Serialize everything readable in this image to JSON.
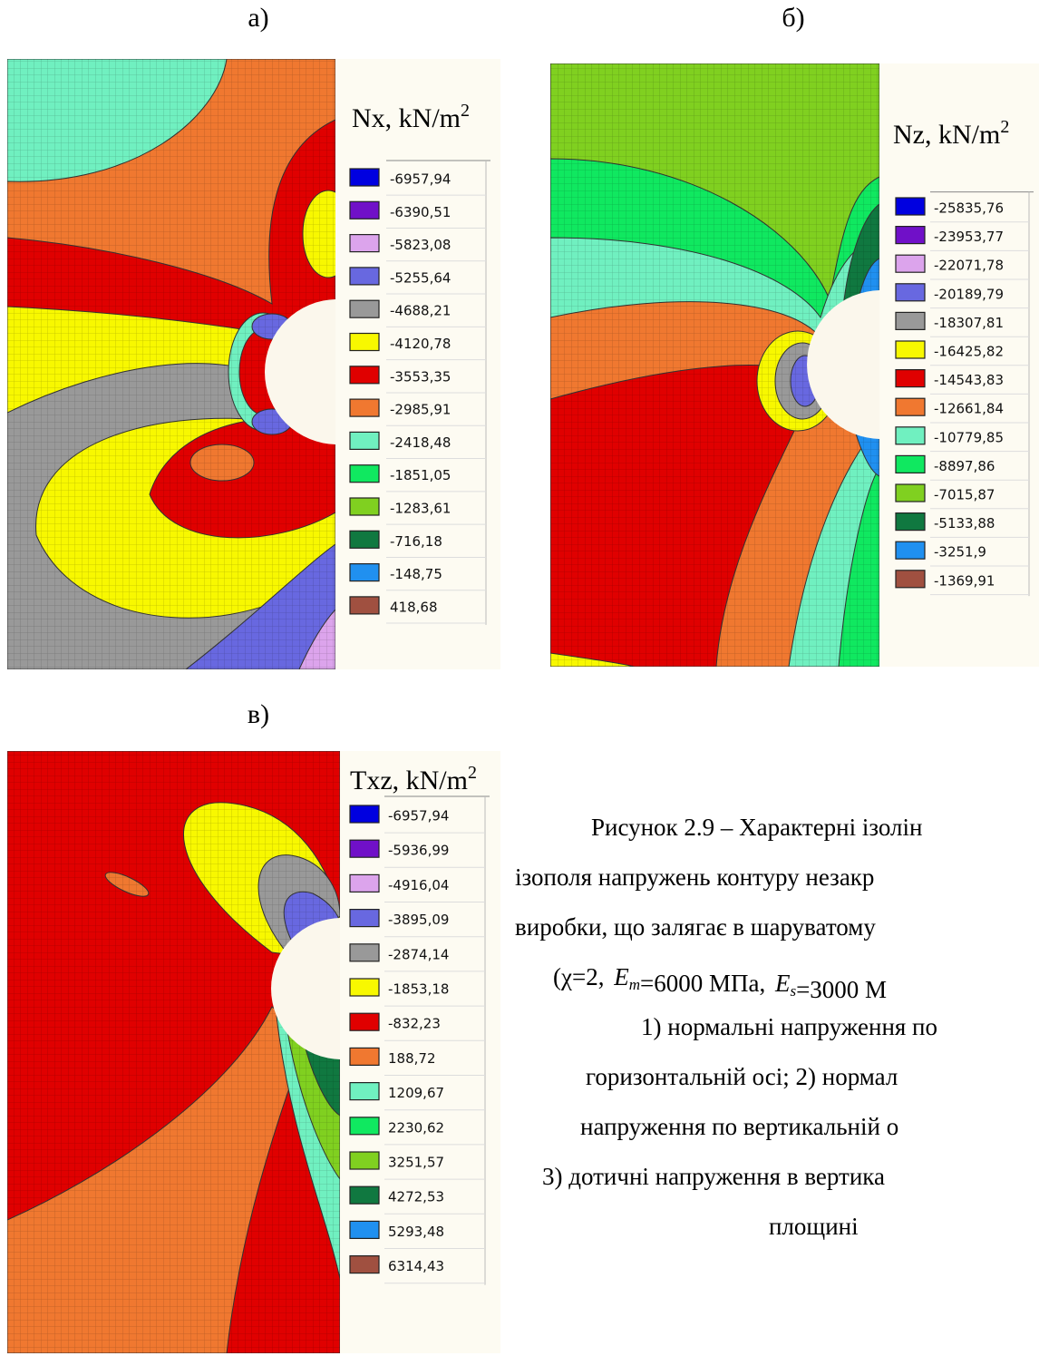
{
  "panels": [
    {
      "label": "а)",
      "title": "Nx, kN/m",
      "title_sup": "2",
      "legend": [
        {
          "color": "#0000e0",
          "label": "-6957,94"
        },
        {
          "color": "#7010c8",
          "label": "-6390,51"
        },
        {
          "color": "#dca4ec",
          "label": "-5823,08"
        },
        {
          "color": "#6868e0",
          "label": "-5255,64"
        },
        {
          "color": "#999999",
          "label": "-4688,21"
        },
        {
          "color": "#f8f800",
          "label": "-4120,78"
        },
        {
          "color": "#e00000",
          "label": "-3553,35"
        },
        {
          "color": "#f07830",
          "label": "-2985,91"
        },
        {
          "color": "#70f0c0",
          "label": "-2418,48"
        },
        {
          "color": "#10e860",
          "label": "-1851,05"
        },
        {
          "color": "#80d020",
          "label": "-1283,61"
        },
        {
          "color": "#107840",
          "label": "-716,18"
        },
        {
          "color": "#2090f0",
          "label": "-148,75"
        },
        {
          "color": "#a05040",
          "label": "418,68"
        }
      ]
    },
    {
      "label": "б)",
      "title": "Nz, kN/m",
      "title_sup": "2",
      "legend": [
        {
          "color": "#0000e0",
          "label": "-25835,76"
        },
        {
          "color": "#7010c8",
          "label": "-23953,77"
        },
        {
          "color": "#dca4ec",
          "label": "-22071,78"
        },
        {
          "color": "#6868e0",
          "label": "-20189,79"
        },
        {
          "color": "#999999",
          "label": "-18307,81"
        },
        {
          "color": "#f8f800",
          "label": "-16425,82"
        },
        {
          "color": "#e00000",
          "label": "-14543,83"
        },
        {
          "color": "#f07830",
          "label": "-12661,84"
        },
        {
          "color": "#70f0c0",
          "label": "-10779,85"
        },
        {
          "color": "#10e860",
          "label": "-8897,86"
        },
        {
          "color": "#80d020",
          "label": "-7015,87"
        },
        {
          "color": "#107840",
          "label": "-5133,88"
        },
        {
          "color": "#2090f0",
          "label": "-3251,9"
        },
        {
          "color": "#a05040",
          "label": "-1369,91"
        }
      ]
    },
    {
      "label": "в)",
      "title": "Txz, kN/m",
      "title_sup": "2",
      "legend": [
        {
          "color": "#0000e0",
          "label": "-6957,94"
        },
        {
          "color": "#7010c8",
          "label": "-5936,99"
        },
        {
          "color": "#dca4ec",
          "label": "-4916,04"
        },
        {
          "color": "#6868e0",
          "label": "-3895,09"
        },
        {
          "color": "#999999",
          "label": "-2874,14"
        },
        {
          "color": "#f8f800",
          "label": "-1853,18"
        },
        {
          "color": "#e00000",
          "label": "-832,23"
        },
        {
          "color": "#f07830",
          "label": "188,72"
        },
        {
          "color": "#70f0c0",
          "label": "1209,67"
        },
        {
          "color": "#10e860",
          "label": "2230,62"
        },
        {
          "color": "#80d020",
          "label": "3251,57"
        },
        {
          "color": "#107840",
          "label": "4272,53"
        },
        {
          "color": "#2090f0",
          "label": "5293,48"
        },
        {
          "color": "#a05040",
          "label": "6314,43"
        }
      ]
    }
  ],
  "caption": {
    "lines": [
      [
        {
          "text": "Рисунок 2.9 – Характерні ізолін"
        }
      ],
      [
        {
          "text": "ізополя напружень контуру незакр"
        }
      ],
      [
        {
          "text": "виробки, що залягає в шаруватому"
        }
      ],
      [
        {
          "text": "(χ=2, "
        },
        {
          "text": "E",
          "sub": "m"
        },
        {
          "text": "=6000 МПа, "
        },
        {
          "text": "E",
          "sub": "s"
        },
        {
          "text": "=3000 М"
        }
      ],
      [
        {
          "text": "1) нормальні напруження по"
        }
      ],
      [
        {
          "text": "горизонтальній осі; 2) нормал"
        }
      ],
      [
        {
          "text": "напруження по вертикальній о"
        }
      ],
      [
        {
          "text": "3) дотичні напруження в вертика"
        }
      ],
      [
        {
          "text": "площині"
        }
      ]
    ]
  }
}
